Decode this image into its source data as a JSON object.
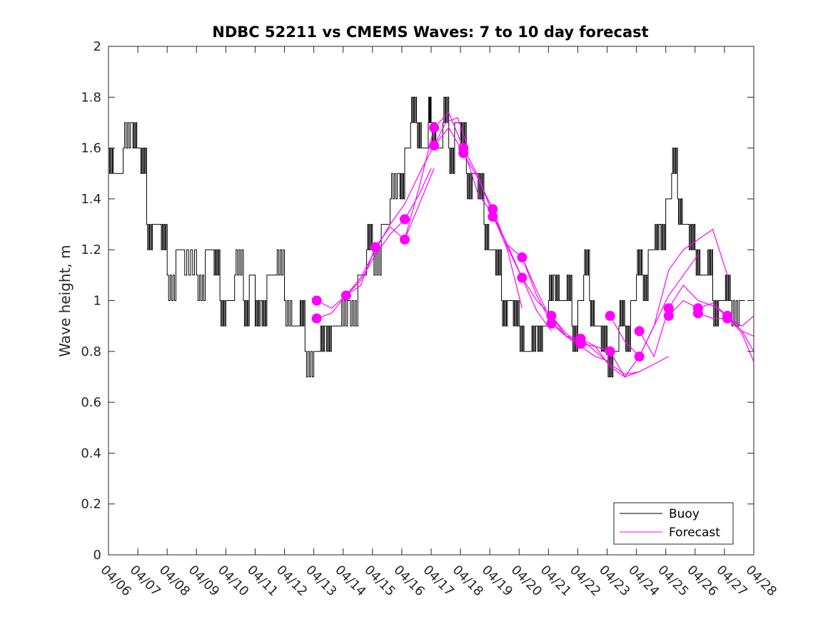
{
  "chart_data": {
    "type": "line",
    "title": "NDBC 52211 vs CMEMS Waves: 7 to 10 day forecast",
    "xlabel": "",
    "ylabel": "Wave height, m",
    "x_ticks": [
      "04/06",
      "04/07",
      "04/08",
      "04/09",
      "04/10",
      "04/11",
      "04/12",
      "04/13",
      "04/14",
      "04/15",
      "04/16",
      "04/17",
      "04/18",
      "04/19",
      "04/20",
      "04/21",
      "04/22",
      "04/23",
      "04/24",
      "04/25",
      "04/26",
      "04/27",
      "04/28"
    ],
    "xlim_days": [
      6,
      28
    ],
    "ylim": [
      0,
      2
    ],
    "y_ticks": [
      0,
      0.2,
      0.4,
      0.6,
      0.8,
      1,
      1.2,
      1.4,
      1.6,
      1.8,
      2
    ],
    "grid": false,
    "legend": {
      "position": "bottom-right",
      "entries": [
        "Buoy",
        "Forecast"
      ]
    },
    "colors": {
      "buoy": "#000000",
      "forecast": "#ff00ff",
      "axes": "#262626"
    },
    "series": [
      {
        "name": "Buoy",
        "style": "step",
        "x_day": [
          6.0,
          6.2,
          6.5,
          6.8,
          7.0,
          7.1,
          7.3,
          7.5,
          7.8,
          8.0,
          8.3,
          8.6,
          9.0,
          9.3,
          9.6,
          9.8,
          10.0,
          10.3,
          10.6,
          10.8,
          11.0,
          11.2,
          11.4,
          11.7,
          12.0,
          12.3,
          12.5,
          12.7,
          13.0,
          13.2,
          13.4,
          13.6,
          13.9,
          14.2,
          14.5,
          14.8,
          15.0,
          15.3,
          15.6,
          15.9,
          16.1,
          16.3,
          16.5,
          16.7,
          16.9,
          17.0,
          17.2,
          17.4,
          17.6,
          17.8,
          18.0,
          18.2,
          18.4,
          18.6,
          18.8,
          19.0,
          19.2,
          19.4,
          19.6,
          19.8,
          20.0,
          20.2,
          20.4,
          20.6,
          20.8,
          21.0,
          21.2,
          21.4,
          21.6,
          21.8,
          22.0,
          22.2,
          22.4,
          22.6,
          22.8,
          23.0,
          23.2,
          23.4,
          23.6,
          23.8,
          24.0,
          24.2,
          24.4,
          24.6,
          24.8,
          25.0,
          25.2,
          25.4,
          25.6,
          25.8,
          26.0,
          26.2,
          26.4,
          26.6,
          26.8,
          27.0,
          27.2,
          27.5
        ],
        "values": [
          1.6,
          1.5,
          1.6,
          1.7,
          1.6,
          1.5,
          1.3,
          1.3,
          1.2,
          1.1,
          1.2,
          1.1,
          1.1,
          1.2,
          1.1,
          1.0,
          1.0,
          1.1,
          1.0,
          1.1,
          0.9,
          1.0,
          1.1,
          1.1,
          1.0,
          0.9,
          0.9,
          0.8,
          0.8,
          0.8,
          0.9,
          0.9,
          0.9,
          1.0,
          1.1,
          1.2,
          1.2,
          1.3,
          1.4,
          1.5,
          1.6,
          1.7,
          1.7,
          1.6,
          1.7,
          1.7,
          1.6,
          1.7,
          1.6,
          1.7,
          1.6,
          1.5,
          1.5,
          1.4,
          1.3,
          1.2,
          1.1,
          1.0,
          1.0,
          0.9,
          0.9,
          0.8,
          0.8,
          0.9,
          0.9,
          1.0,
          1.1,
          1.0,
          1.0,
          0.9,
          1.0,
          1.1,
          1.0,
          0.9,
          0.8,
          0.8,
          0.8,
          0.9,
          0.9,
          1.0,
          1.1,
          1.1,
          1.2,
          1.2,
          1.3,
          1.4,
          1.5,
          1.4,
          1.3,
          1.2,
          1.2,
          1.1,
          1.1,
          1.0,
          1.0,
          1.0,
          1.0,
          1.0
        ]
      },
      {
        "name": "Forecast",
        "runs": [
          {
            "x_day": [
              13.1,
              13.6,
              14.1,
              14.6,
              15.1,
              15.6,
              16.1,
              16.6,
              17.0
            ],
            "values": [
              0.93,
              0.95,
              1.02,
              1.08,
              1.18,
              1.26,
              1.32,
              1.42,
              1.52
            ]
          },
          {
            "x_day": [
              13.1,
              13.6,
              14.1,
              14.6,
              15.1,
              15.6,
              16.1,
              16.6,
              17.1
            ],
            "values": [
              1.0,
              0.97,
              1.02,
              1.06,
              1.21,
              1.29,
              1.24,
              1.38,
              1.52
            ]
          },
          {
            "x_day": [
              14.1,
              14.6,
              15.1,
              15.6,
              16.1,
              16.6,
              17.1,
              17.5,
              17.9,
              18.2
            ],
            "values": [
              1.02,
              1.09,
              1.2,
              1.3,
              1.38,
              1.5,
              1.61,
              1.7,
              1.72,
              1.62
            ]
          },
          {
            "x_day": [
              16.1,
              16.6,
              17.1,
              17.6,
              18.1,
              18.6,
              19.1,
              19.6,
              20.1
            ],
            "values": [
              1.24,
              1.45,
              1.68,
              1.74,
              1.6,
              1.42,
              1.34,
              1.2,
              0.97
            ]
          },
          {
            "x_day": [
              17.1,
              17.6,
              18.1,
              18.6,
              19.1,
              19.6,
              20.1,
              20.6,
              21.1
            ],
            "values": [
              1.61,
              1.68,
              1.58,
              1.48,
              1.36,
              1.21,
              1.09,
              0.96,
              0.88
            ]
          },
          {
            "x_day": [
              18.1,
              18.6,
              19.1,
              19.6,
              20.1,
              20.6,
              21.1,
              21.6,
              22.1
            ],
            "values": [
              1.6,
              1.49,
              1.34,
              1.22,
              1.17,
              1.04,
              0.92,
              0.86,
              0.83
            ]
          },
          {
            "x_day": [
              19.1,
              19.6,
              20.1,
              20.6,
              21.1,
              21.6,
              22.1,
              22.6,
              23.1
            ],
            "values": [
              1.33,
              1.22,
              1.09,
              1.0,
              0.94,
              0.86,
              0.82,
              0.78,
              0.76
            ]
          },
          {
            "x_day": [
              20.1,
              20.6,
              21.1,
              21.6,
              22.1,
              22.6,
              23.1,
              23.6,
              24.1
            ],
            "values": [
              1.17,
              1.02,
              0.91,
              0.86,
              0.85,
              0.8,
              0.75,
              0.71,
              0.72
            ]
          },
          {
            "x_day": [
              21.1,
              21.6,
              22.1,
              22.6,
              23.1,
              23.6,
              24.1,
              24.6,
              25.1
            ],
            "values": [
              0.94,
              0.87,
              0.83,
              0.82,
              0.74,
              0.7,
              0.72,
              0.75,
              0.78
            ]
          },
          {
            "x_day": [
              22.1,
              22.6,
              23.1,
              23.6,
              24.1,
              24.6,
              25.1,
              25.6,
              26.1
            ],
            "values": [
              0.85,
              0.82,
              0.8,
              0.7,
              0.78,
              0.9,
              1.02,
              1.1,
              1.18
            ]
          },
          {
            "x_day": [
              23.1,
              23.6,
              24.1,
              24.6,
              25.1,
              25.6,
              26.1,
              26.6,
              27.1
            ],
            "values": [
              0.94,
              0.84,
              0.78,
              0.9,
              1.12,
              1.2,
              1.24,
              1.28,
              1.1
            ]
          },
          {
            "x_day": [
              24.1,
              24.6,
              25.1,
              25.6,
              26.1,
              26.6,
              27.1,
              27.6,
              28.0
            ],
            "values": [
              0.88,
              0.78,
              0.97,
              1.06,
              1.0,
              0.98,
              0.94,
              0.88,
              0.8
            ]
          },
          {
            "x_day": [
              25.1,
              25.6,
              26.1,
              26.6,
              27.1,
              27.6,
              28.0
            ],
            "values": [
              0.94,
              1.0,
              0.97,
              0.99,
              0.94,
              0.88,
              0.86
            ]
          },
          {
            "x_day": [
              26.1,
              26.6,
              27.1,
              27.6,
              28.0
            ],
            "values": [
              0.95,
              0.93,
              0.93,
              0.9,
              0.94
            ]
          },
          {
            "x_day": [
              27.1,
              27.6,
              28.0
            ],
            "values": [
              0.94,
              0.87,
              0.76
            ]
          }
        ],
        "markers": [
          [
            13.1,
            0.93
          ],
          [
            13.1,
            1.0
          ],
          [
            14.1,
            1.02
          ],
          [
            15.1,
            1.21
          ],
          [
            16.1,
            1.24
          ],
          [
            16.1,
            1.32
          ],
          [
            17.1,
            1.61
          ],
          [
            17.1,
            1.68
          ],
          [
            18.1,
            1.58
          ],
          [
            18.1,
            1.6
          ],
          [
            19.1,
            1.33
          ],
          [
            19.1,
            1.36
          ],
          [
            20.1,
            1.09
          ],
          [
            20.1,
            1.17
          ],
          [
            21.1,
            0.91
          ],
          [
            21.1,
            0.94
          ],
          [
            22.1,
            0.83
          ],
          [
            22.1,
            0.85
          ],
          [
            23.1,
            0.8
          ],
          [
            23.1,
            0.94
          ],
          [
            24.1,
            0.78
          ],
          [
            24.1,
            0.88
          ],
          [
            25.1,
            0.94
          ],
          [
            25.1,
            0.97
          ],
          [
            26.1,
            0.95
          ],
          [
            26.1,
            0.97
          ],
          [
            27.1,
            0.93
          ],
          [
            27.1,
            0.94
          ]
        ]
      }
    ]
  }
}
